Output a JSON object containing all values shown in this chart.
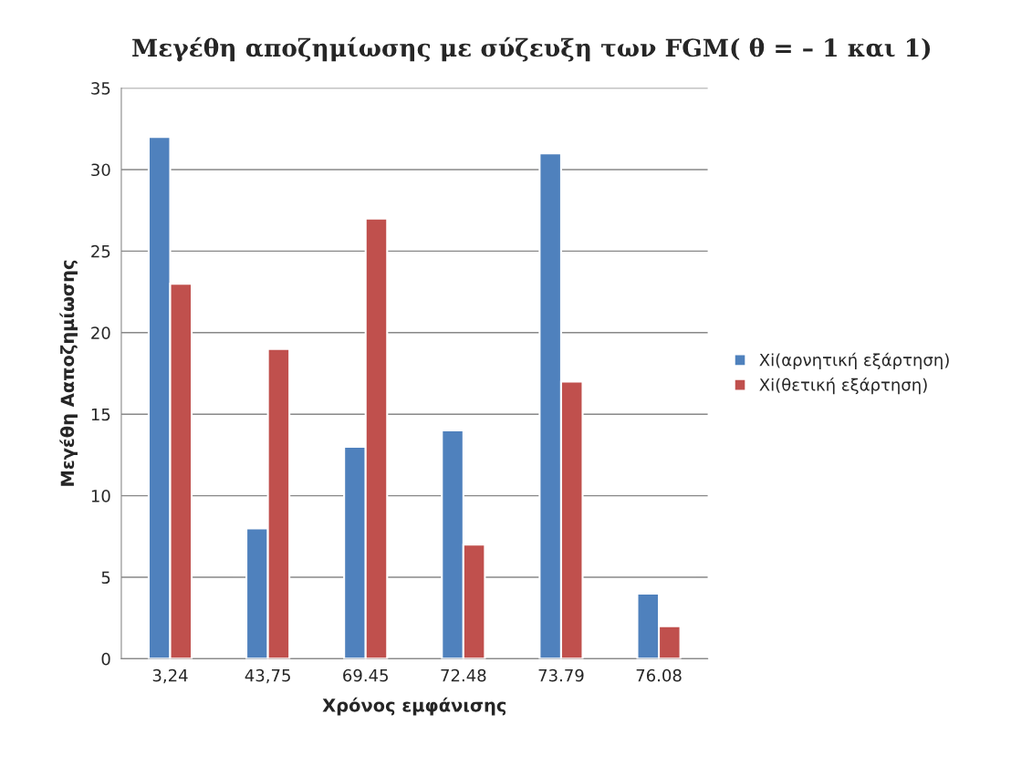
{
  "chart_data": {
    "type": "bar",
    "title": "Μεγέθη αποζημίωσης με σύζευξη των FGM( θ = – 1 και 1)",
    "xlabel": "Χρόνος εμφάνισης",
    "ylabel": "Μεγέθη Ααποζημίωσης",
    "categories": [
      "3,24",
      "43,75",
      "69.45",
      "72.48",
      "73.79",
      "76.08"
    ],
    "series": [
      {
        "name": "Xi(αρνητική εξάρτηση)",
        "color": "#4f81bd",
        "values": [
          32,
          8,
          13,
          14,
          31,
          4
        ]
      },
      {
        "name": "Xi(θετική εξάρτηση)",
        "color": "#c0504d",
        "values": [
          23,
          19,
          27,
          7,
          17,
          2
        ]
      }
    ],
    "ylim": [
      0,
      35
    ],
    "yticks": [
      0,
      5,
      10,
      15,
      20,
      25,
      30,
      35
    ],
    "grid": "y",
    "legend": "right"
  }
}
